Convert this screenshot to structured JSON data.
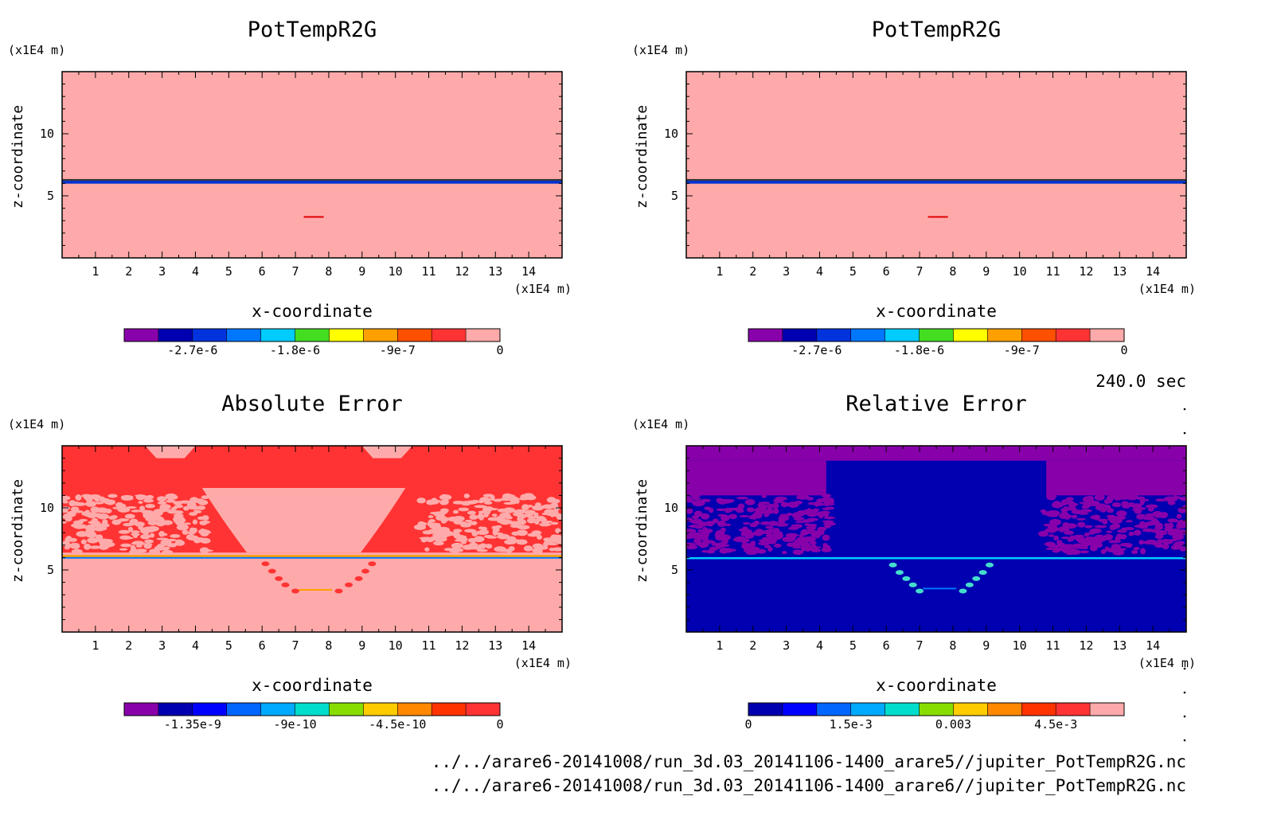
{
  "figure": {
    "time_label": "240.0 sec",
    "files": [
      "../../arare6-20141008/run_3d.03_20141106-1400_arare5//jupiter_PotTempR2G.nc",
      "../../arare6-20141008/run_3d.03_20141106-1400_arare6//jupiter_PotTempR2G.nc"
    ]
  },
  "chart_data": [
    {
      "type": "heatmap",
      "title": "PotTempR2G",
      "xlabel": "x-coordinate",
      "ylabel": "z-coordinate",
      "x_unit": "(x1E4 m)",
      "y_unit": "(x1E4 m)",
      "xlim": [
        0,
        15
      ],
      "ylim": [
        0,
        15
      ],
      "x_ticks": [
        1,
        2,
        3,
        4,
        5,
        6,
        7,
        8,
        9,
        10,
        11,
        12,
        13,
        14
      ],
      "y_ticks": [
        5,
        10
      ],
      "background_color": "#ffaaaa",
      "features": [
        {
          "kind": "band",
          "z_center": 6.1,
          "z_half_width": 0.12,
          "color": "#0033cc"
        },
        {
          "kind": "band",
          "z_center": 6.3,
          "z_half_width": 0.05,
          "color": "#333333"
        },
        {
          "kind": "segment",
          "x": [
            7.25,
            7.85
          ],
          "z": 3.3,
          "color": "#e00000"
        }
      ],
      "colorbar": {
        "colors": [
          "#8800aa",
          "#0000b0",
          "#0033dd",
          "#0077ff",
          "#00ccff",
          "#44dd22",
          "#ffff00",
          "#ffa000",
          "#ff5000",
          "#ff3333",
          "#ffaaaa"
        ],
        "tick_labels": [
          "-2.7e-6",
          "-1.8e-6",
          "-9e-7",
          "0"
        ],
        "tick_positions": [
          2,
          5,
          8,
          11
        ]
      }
    },
    {
      "type": "heatmap",
      "title": "PotTempR2G",
      "xlabel": "x-coordinate",
      "ylabel": "z-coordinate",
      "x_unit": "(x1E4 m)",
      "y_unit": "(x1E4 m)",
      "xlim": [
        0,
        15
      ],
      "ylim": [
        0,
        15
      ],
      "x_ticks": [
        1,
        2,
        3,
        4,
        5,
        6,
        7,
        8,
        9,
        10,
        11,
        12,
        13,
        14
      ],
      "y_ticks": [
        5,
        10
      ],
      "background_color": "#ffaaaa",
      "features": [
        {
          "kind": "band",
          "z_center": 6.1,
          "z_half_width": 0.12,
          "color": "#0033cc"
        },
        {
          "kind": "band",
          "z_center": 6.3,
          "z_half_width": 0.05,
          "color": "#333333"
        },
        {
          "kind": "segment",
          "x": [
            7.25,
            7.85
          ],
          "z": 3.3,
          "color": "#e00000"
        }
      ],
      "colorbar": {
        "colors": [
          "#8800aa",
          "#0000b0",
          "#0033dd",
          "#0077ff",
          "#00ccff",
          "#44dd22",
          "#ffff00",
          "#ffa000",
          "#ff5000",
          "#ff3333",
          "#ffaaaa"
        ],
        "tick_labels": [
          "-2.7e-6",
          "-1.8e-6",
          "-9e-7",
          "0"
        ],
        "tick_positions": [
          2,
          5,
          8,
          11
        ]
      }
    },
    {
      "type": "heatmap",
      "title": "Absolute Error",
      "xlabel": "x-coordinate",
      "ylabel": "z-coordinate",
      "x_unit": "(x1E4 m)",
      "y_unit": "(x1E4 m)",
      "xlim": [
        0,
        15
      ],
      "ylim": [
        0,
        15
      ],
      "x_ticks": [
        1,
        2,
        3,
        4,
        5,
        6,
        7,
        8,
        9,
        10,
        11,
        12,
        13,
        14
      ],
      "y_ticks": [
        5,
        10
      ],
      "background_color": "#ffaaaa",
      "features": [
        {
          "kind": "region",
          "x": [
            0,
            15
          ],
          "z": [
            6.4,
            15
          ],
          "color": "#ff3333"
        },
        {
          "kind": "blob",
          "x": [
            4.2,
            10.3
          ],
          "z": [
            6.4,
            11.6
          ],
          "color": "#ffaaaa"
        },
        {
          "kind": "blob",
          "x": [
            2.5,
            4.0
          ],
          "z": [
            14.0,
            15.0
          ],
          "color": "#ffaaaa"
        },
        {
          "kind": "blob",
          "x": [
            9.0,
            10.5
          ],
          "z": [
            14.0,
            15.0
          ],
          "color": "#ffaaaa"
        },
        {
          "kind": "speckle",
          "x": [
            0,
            4.4
          ],
          "z": [
            6.4,
            11.0
          ],
          "color": "#ffaaaa"
        },
        {
          "kind": "speckle",
          "x": [
            10.7,
            15
          ],
          "z": [
            6.4,
            11.0
          ],
          "color": "#ffaaaa"
        },
        {
          "kind": "band",
          "z_center": 6.1,
          "z_half_width": 0.1,
          "color": "#ffa000"
        },
        {
          "kind": "band",
          "z_center": 6.0,
          "z_half_width": 0.04,
          "color": "#0077ff"
        },
        {
          "kind": "dots",
          "x": [
            6.1,
            6.3,
            6.5,
            6.7,
            7.0,
            8.3,
            8.6,
            8.9,
            9.1,
            9.3
          ],
          "z": [
            5.5,
            4.9,
            4.3,
            3.8,
            3.3,
            3.3,
            3.8,
            4.3,
            4.9,
            5.5
          ],
          "color": "#ff3333"
        },
        {
          "kind": "segment",
          "x": [
            7.1,
            8.1
          ],
          "z": 3.4,
          "color": "#ffa000"
        }
      ],
      "colorbar": {
        "colors": [
          "#8800aa",
          "#0000b0",
          "#0000ff",
          "#0066ff",
          "#00aaff",
          "#00ddcc",
          "#88dd00",
          "#ffcc00",
          "#ff8800",
          "#ff3300",
          "#ff3333"
        ],
        "tick_labels": [
          "-1.35e-9",
          "-9e-10",
          "-4.5e-10",
          "0"
        ],
        "tick_positions": [
          2,
          5,
          8,
          11
        ]
      }
    },
    {
      "type": "heatmap",
      "title": "Relative Error",
      "xlabel": "x-coordinate",
      "ylabel": "z-coordinate",
      "x_unit": "(x1E4 m)",
      "y_unit": "(x1E4 m)",
      "xlim": [
        0,
        15
      ],
      "ylim": [
        0,
        15
      ],
      "x_ticks": [
        1,
        2,
        3,
        4,
        5,
        6,
        7,
        8,
        9,
        10,
        11,
        12,
        13,
        14
      ],
      "y_ticks": [
        5,
        10
      ],
      "background_color": "#0000b0",
      "features": [
        {
          "kind": "region",
          "x": [
            0,
            15
          ],
          "z": [
            13.8,
            15
          ],
          "color": "#8800aa"
        },
        {
          "kind": "region",
          "x": [
            0,
            4.2
          ],
          "z": [
            11.0,
            13.8
          ],
          "color": "#8800aa"
        },
        {
          "kind": "region",
          "x": [
            10.8,
            15
          ],
          "z": [
            11.0,
            13.8
          ],
          "color": "#8800aa"
        },
        {
          "kind": "speckle",
          "x": [
            0,
            4.4
          ],
          "z": [
            6.4,
            11.0
          ],
          "color": "#8800aa"
        },
        {
          "kind": "speckle",
          "x": [
            10.7,
            15
          ],
          "z": [
            6.4,
            11.0
          ],
          "color": "#8800aa"
        },
        {
          "kind": "band",
          "z_center": 5.95,
          "z_half_width": 0.08,
          "color": "#00ccff"
        },
        {
          "kind": "dots",
          "x": [
            6.2,
            6.4,
            6.6,
            6.8,
            7.0,
            8.3,
            8.5,
            8.7,
            8.9,
            9.1
          ],
          "z": [
            5.4,
            4.8,
            4.3,
            3.8,
            3.3,
            3.3,
            3.8,
            4.3,
            4.8,
            5.4
          ],
          "color": "#44ddcc"
        },
        {
          "kind": "segment",
          "x": [
            7.1,
            8.1
          ],
          "z": 3.5,
          "color": "#0077ff"
        }
      ],
      "colorbar": {
        "colors": [
          "#0000b0",
          "#0000ff",
          "#0066ff",
          "#00aaff",
          "#00ddcc",
          "#88dd00",
          "#ffcc00",
          "#ff8800",
          "#ff3300",
          "#ff3333",
          "#ffaaaa"
        ],
        "tick_labels": [
          "0",
          "1.5e-3",
          "0.003",
          "4.5e-3"
        ],
        "tick_positions": [
          0,
          3,
          6,
          9
        ]
      }
    }
  ]
}
